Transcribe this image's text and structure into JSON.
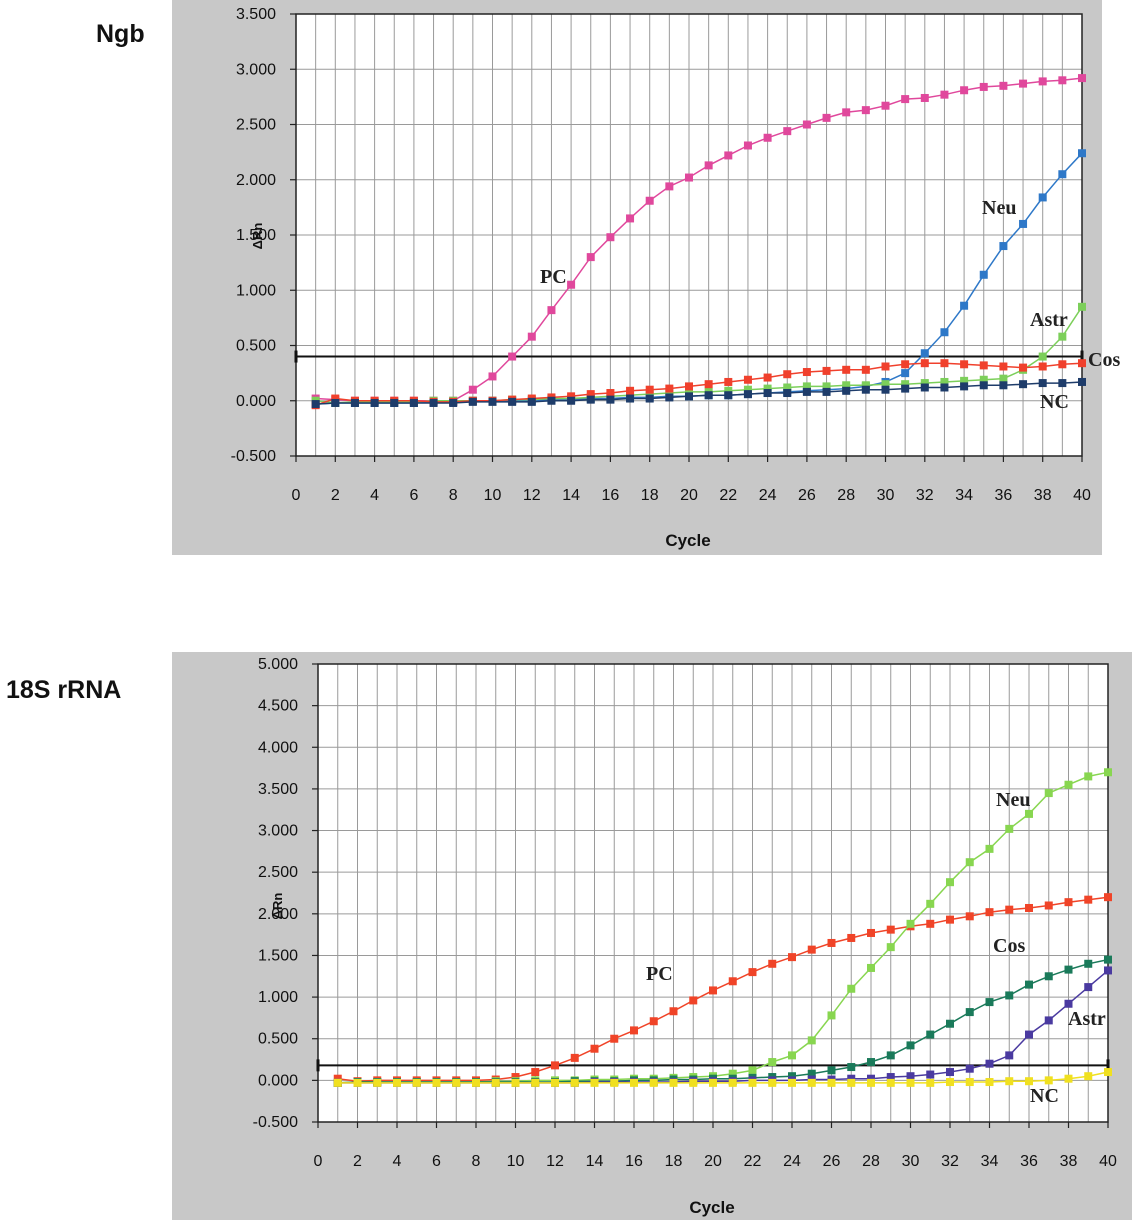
{
  "chart_data": [
    {
      "type": "line",
      "title": "",
      "panel_label": "Ngb",
      "xlabel": "Cycle",
      "ylabel": "ΔRn",
      "xlim": [
        0,
        40
      ],
      "ylim": [
        -0.5,
        3.5
      ],
      "x_ticks": [
        "0",
        "2",
        "4",
        "6",
        "8",
        "10",
        "12",
        "14",
        "16",
        "18",
        "20",
        "22",
        "24",
        "26",
        "28",
        "30",
        "32",
        "34",
        "36",
        "38",
        "40"
      ],
      "y_ticks": [
        "3.500",
        "3.000",
        "2.500",
        "2.000",
        "1.500",
        "1.000",
        "0.500",
        "0.000",
        "-0.500"
      ],
      "grid": true,
      "threshold": 0.4,
      "x": [
        1,
        2,
        3,
        4,
        5,
        6,
        7,
        8,
        9,
        10,
        11,
        12,
        13,
        14,
        15,
        16,
        17,
        18,
        19,
        20,
        21,
        22,
        23,
        24,
        25,
        26,
        27,
        28,
        29,
        30,
        31,
        32,
        33,
        34,
        35,
        36,
        37,
        38,
        39,
        40
      ],
      "series": [
        {
          "name": "PC",
          "color": "#e0489c",
          "values": [
            0.02,
            0.01,
            0.0,
            0.0,
            0.0,
            0.0,
            0.0,
            0.0,
            0.1,
            0.22,
            0.4,
            0.58,
            0.82,
            1.05,
            1.3,
            1.48,
            1.65,
            1.81,
            1.94,
            2.02,
            2.13,
            2.22,
            2.31,
            2.38,
            2.44,
            2.5,
            2.56,
            2.61,
            2.63,
            2.67,
            2.73,
            2.74,
            2.77,
            2.81,
            2.84,
            2.85,
            2.87,
            2.89,
            2.9,
            2.92
          ]
        },
        {
          "name": "Neu",
          "color": "#2e78c8",
          "values": [
            -0.03,
            -0.02,
            -0.02,
            -0.02,
            -0.02,
            -0.02,
            -0.01,
            -0.01,
            0.0,
            0.0,
            0.0,
            0.0,
            0.01,
            0.01,
            0.02,
            0.02,
            0.03,
            0.03,
            0.04,
            0.04,
            0.05,
            0.05,
            0.06,
            0.07,
            0.08,
            0.09,
            0.1,
            0.11,
            0.13,
            0.17,
            0.25,
            0.43,
            0.62,
            0.86,
            1.14,
            1.4,
            1.6,
            1.84,
            2.05,
            2.24
          ]
        },
        {
          "name": "Astr",
          "color": "#7ccf5a",
          "values": [
            0.0,
            -0.02,
            -0.01,
            -0.01,
            -0.01,
            -0.01,
            0.0,
            0.0,
            0.0,
            0.0,
            0.01,
            0.01,
            0.02,
            0.02,
            0.03,
            0.04,
            0.05,
            0.06,
            0.07,
            0.08,
            0.08,
            0.09,
            0.1,
            0.11,
            0.12,
            0.13,
            0.13,
            0.14,
            0.14,
            0.15,
            0.15,
            0.16,
            0.17,
            0.18,
            0.19,
            0.2,
            0.28,
            0.4,
            0.58,
            0.85
          ]
        },
        {
          "name": "Cos",
          "color": "#f0402c",
          "values": [
            -0.04,
            0.02,
            0.0,
            0.0,
            0.0,
            0.0,
            -0.01,
            -0.01,
            0.0,
            0.0,
            0.01,
            0.02,
            0.03,
            0.04,
            0.06,
            0.07,
            0.09,
            0.1,
            0.11,
            0.13,
            0.15,
            0.17,
            0.19,
            0.21,
            0.24,
            0.26,
            0.27,
            0.28,
            0.28,
            0.31,
            0.33,
            0.34,
            0.34,
            0.33,
            0.32,
            0.31,
            0.3,
            0.31,
            0.33,
            0.34
          ]
        },
        {
          "name": "NC",
          "color": "#1e3c6a",
          "values": [
            -0.03,
            -0.02,
            -0.02,
            -0.02,
            -0.02,
            -0.02,
            -0.02,
            -0.02,
            -0.01,
            -0.01,
            -0.01,
            -0.01,
            0.0,
            0.0,
            0.01,
            0.01,
            0.02,
            0.02,
            0.03,
            0.04,
            0.05,
            0.05,
            0.06,
            0.07,
            0.07,
            0.08,
            0.08,
            0.09,
            0.1,
            0.1,
            0.11,
            0.12,
            0.12,
            0.13,
            0.14,
            0.14,
            0.15,
            0.16,
            0.16,
            0.17
          ]
        }
      ]
    },
    {
      "type": "line",
      "title": "",
      "panel_label": "18S rRNA",
      "xlabel": "Cycle",
      "ylabel": "ΔRn",
      "xlim": [
        0,
        40
      ],
      "ylim": [
        -0.5,
        5.0
      ],
      "x_ticks": [
        "0",
        "2",
        "4",
        "6",
        "8",
        "10",
        "12",
        "14",
        "16",
        "18",
        "20",
        "22",
        "24",
        "26",
        "28",
        "30",
        "32",
        "34",
        "36",
        "38",
        "40"
      ],
      "y_ticks": [
        "5.000",
        "4.500",
        "4.000",
        "3.500",
        "3.000",
        "2.500",
        "2.000",
        "1.500",
        "1.000",
        "0.500",
        "0.000",
        "-0.500"
      ],
      "grid": true,
      "threshold": 0.18,
      "x": [
        1,
        2,
        3,
        4,
        5,
        6,
        7,
        8,
        9,
        10,
        11,
        12,
        13,
        14,
        15,
        16,
        17,
        18,
        19,
        20,
        21,
        22,
        23,
        24,
        25,
        26,
        27,
        28,
        29,
        30,
        31,
        32,
        33,
        34,
        35,
        36,
        37,
        38,
        39,
        40
      ],
      "series": [
        {
          "name": "PC",
          "color": "#f04428",
          "values": [
            0.02,
            -0.01,
            0.0,
            0.0,
            0.0,
            0.0,
            0.0,
            0.0,
            0.01,
            0.04,
            0.1,
            0.18,
            0.27,
            0.38,
            0.5,
            0.6,
            0.71,
            0.83,
            0.96,
            1.08,
            1.19,
            1.3,
            1.4,
            1.48,
            1.57,
            1.65,
            1.71,
            1.77,
            1.81,
            1.85,
            1.88,
            1.93,
            1.97,
            2.02,
            2.05,
            2.07,
            2.1,
            2.14,
            2.17,
            2.2
          ]
        },
        {
          "name": "Neu",
          "color": "#88d650",
          "values": [
            -0.03,
            -0.02,
            -0.02,
            -0.02,
            -0.02,
            -0.02,
            -0.02,
            -0.02,
            -0.01,
            -0.01,
            0.0,
            0.0,
            0.0,
            0.01,
            0.01,
            0.02,
            0.02,
            0.03,
            0.04,
            0.05,
            0.08,
            0.12,
            0.22,
            0.3,
            0.48,
            0.78,
            1.1,
            1.35,
            1.6,
            1.88,
            2.12,
            2.38,
            2.62,
            2.78,
            3.02,
            3.2,
            3.45,
            3.55,
            3.65,
            3.7
          ]
        },
        {
          "name": "Cos",
          "color": "#1a7a5a",
          "values": [
            -0.03,
            -0.02,
            -0.02,
            -0.02,
            -0.02,
            -0.02,
            -0.02,
            -0.02,
            -0.02,
            -0.02,
            -0.02,
            -0.02,
            -0.01,
            -0.01,
            -0.01,
            0.0,
            0.0,
            0.01,
            0.01,
            0.02,
            0.02,
            0.03,
            0.04,
            0.05,
            0.08,
            0.12,
            0.16,
            0.22,
            0.3,
            0.42,
            0.55,
            0.68,
            0.82,
            0.94,
            1.02,
            1.15,
            1.25,
            1.33,
            1.4,
            1.45
          ]
        },
        {
          "name": "Astr",
          "color": "#4a3aa0",
          "values": [
            -0.03,
            -0.03,
            -0.03,
            -0.03,
            -0.03,
            -0.03,
            -0.03,
            -0.03,
            -0.03,
            -0.03,
            -0.03,
            -0.03,
            -0.03,
            -0.02,
            -0.02,
            -0.02,
            -0.02,
            -0.02,
            -0.01,
            -0.01,
            -0.01,
            0.0,
            0.0,
            0.0,
            0.01,
            0.01,
            0.02,
            0.02,
            0.04,
            0.05,
            0.07,
            0.1,
            0.14,
            0.2,
            0.3,
            0.55,
            0.72,
            0.92,
            1.12,
            1.32
          ]
        },
        {
          "name": "NC",
          "color": "#f0e020",
          "values": [
            -0.03,
            -0.03,
            -0.03,
            -0.03,
            -0.03,
            -0.03,
            -0.03,
            -0.03,
            -0.03,
            -0.03,
            -0.03,
            -0.03,
            -0.03,
            -0.03,
            -0.03,
            -0.03,
            -0.03,
            -0.03,
            -0.03,
            -0.03,
            -0.03,
            -0.03,
            -0.03,
            -0.03,
            -0.03,
            -0.03,
            -0.03,
            -0.03,
            -0.03,
            -0.03,
            -0.03,
            -0.02,
            -0.02,
            -0.02,
            -0.01,
            -0.01,
            0.0,
            0.02,
            0.05,
            0.1
          ]
        }
      ]
    }
  ]
}
